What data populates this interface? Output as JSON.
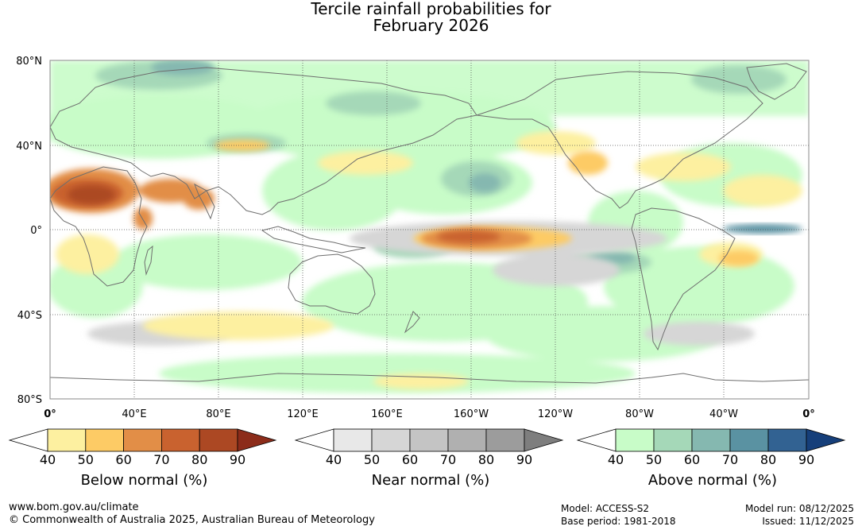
{
  "title": {
    "line1": "Tercile rainfall probabilities for",
    "line2": "February 2026"
  },
  "map": {
    "lat_labels": [
      "80°N",
      "40°N",
      "0°",
      "40°S",
      "80°S"
    ],
    "lon_labels": [
      "0°",
      "40°E",
      "80°E",
      "120°E",
      "160°E",
      "160°W",
      "120°W",
      "80°W",
      "40°W",
      "0°"
    ],
    "colors": {
      "land_outline": "#6e6e6e",
      "grid": "#555555"
    }
  },
  "legends": [
    {
      "title": "Below normal (%)",
      "ticks": [
        "40",
        "50",
        "60",
        "70",
        "80",
        "90"
      ],
      "colors": [
        "#ffffff",
        "#fdf0a0",
        "#fdcb65",
        "#e28e47",
        "#c9622f",
        "#ac4823",
        "#8c2c1a"
      ]
    },
    {
      "title": "Near normal (%)",
      "ticks": [
        "40",
        "50",
        "60",
        "70",
        "80",
        "90"
      ],
      "colors": [
        "#ffffff",
        "#e8e8e8",
        "#d6d6d6",
        "#c4c4c4",
        "#b0b0b0",
        "#9c9c9c",
        "#7e7e7e"
      ]
    },
    {
      "title": "Above normal (%)",
      "ticks": [
        "40",
        "50",
        "60",
        "70",
        "80",
        "90"
      ],
      "colors": [
        "#ffffff",
        "#c8fcc8",
        "#a5d8b8",
        "#85b8b0",
        "#5a92a2",
        "#326292",
        "#163f7a"
      ]
    }
  ],
  "footer": {
    "url": "www.bom.gov.au/climate",
    "copyright": "© Commonwealth of Australia 2025, Australian Bureau of Meteorology",
    "model": "Model: ACCESS-S2",
    "base_period": "Base period: 1981-2018",
    "model_run": "Model run: 08/12/2025",
    "issued": "Issued: 11/12/2025"
  }
}
